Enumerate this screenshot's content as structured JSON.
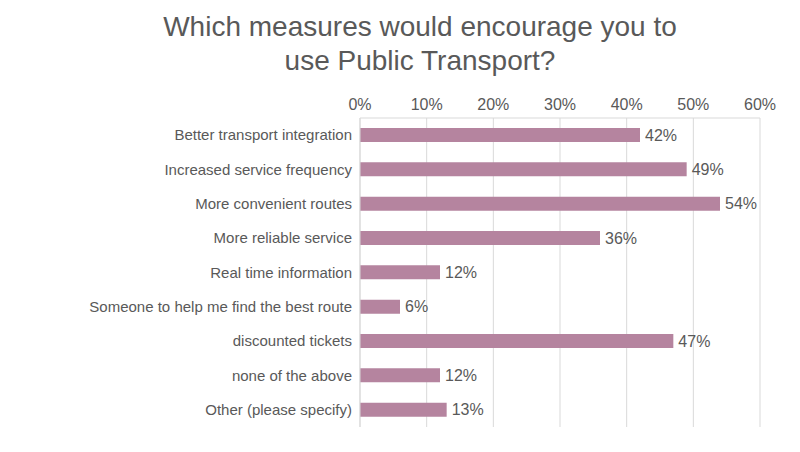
{
  "chart_data": {
    "type": "bar",
    "title": "Which measures would encourage you to use Public Transport?",
    "orientation": "horizontal",
    "categories": [
      "Better transport integration",
      "Increased service frequency",
      "More convenient routes",
      "More reliable service",
      "Real time information",
      "Someone to help me find the best route",
      "discounted tickets",
      "none of the above",
      "Other (please specify)"
    ],
    "values": [
      42,
      49,
      54,
      36,
      12,
      6,
      47,
      12,
      13
    ],
    "value_labels": [
      "42%",
      "49%",
      "54%",
      "36%",
      "12%",
      "6%",
      "47%",
      "12%",
      "13%"
    ],
    "color": "#b5849f",
    "xlim": [
      0,
      60
    ],
    "xticks": [
      {
        "value": 0,
        "label": "0%"
      },
      {
        "value": 10,
        "label": "10%"
      },
      {
        "value": 20,
        "label": "20%"
      },
      {
        "value": 30,
        "label": "30%"
      },
      {
        "value": 40,
        "label": "40%"
      },
      {
        "value": 50,
        "label": "50%"
      },
      {
        "value": 60,
        "label": "60%"
      }
    ],
    "grid": true,
    "data_labels": true
  }
}
